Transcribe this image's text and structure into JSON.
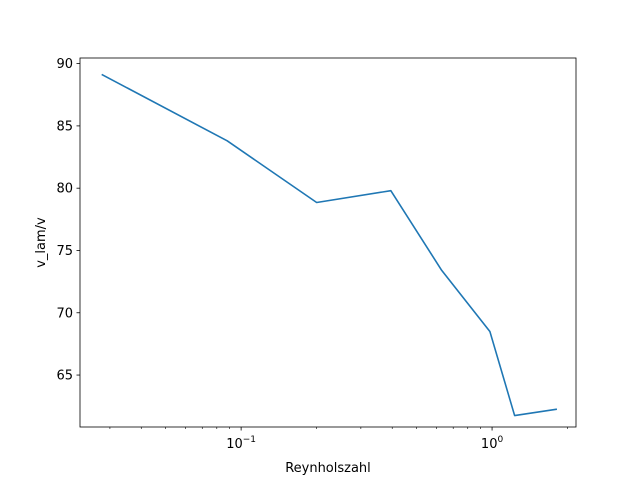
{
  "chart_data": {
    "type": "line",
    "title": "",
    "xlabel": "Reynholszahl",
    "ylabel": "v_lam/v",
    "xscale": "log",
    "xlim": [
      0.0228,
      2.16
    ],
    "ylim": [
      60.83,
      90.45
    ],
    "grid": false,
    "legend": "none",
    "x_major_ticks": [
      {
        "value": 0.1,
        "base": "10",
        "exp": "−1"
      },
      {
        "value": 1,
        "base": "10",
        "exp": "0"
      }
    ],
    "x_minor_ticks": [
      0.03,
      0.04,
      0.05,
      0.06,
      0.07,
      0.08,
      0.09,
      0.2,
      0.3,
      0.4,
      0.5,
      0.6,
      0.7,
      0.8,
      0.9,
      2
    ],
    "y_ticks": [
      {
        "value": 65,
        "label": "65"
      },
      {
        "value": 70,
        "label": "70"
      },
      {
        "value": 75,
        "label": "75"
      },
      {
        "value": 80,
        "label": "80"
      },
      {
        "value": 85,
        "label": "85"
      },
      {
        "value": 90,
        "label": "90"
      }
    ],
    "series": [
      {
        "color": "#1f77b4",
        "x": [
          0.028,
          0.088,
          0.2,
          0.395,
          0.63,
          0.98,
          1.23,
          1.8
        ],
        "y": [
          89.1,
          83.8,
          78.85,
          79.8,
          73.4,
          68.5,
          61.75,
          62.25
        ]
      }
    ]
  }
}
